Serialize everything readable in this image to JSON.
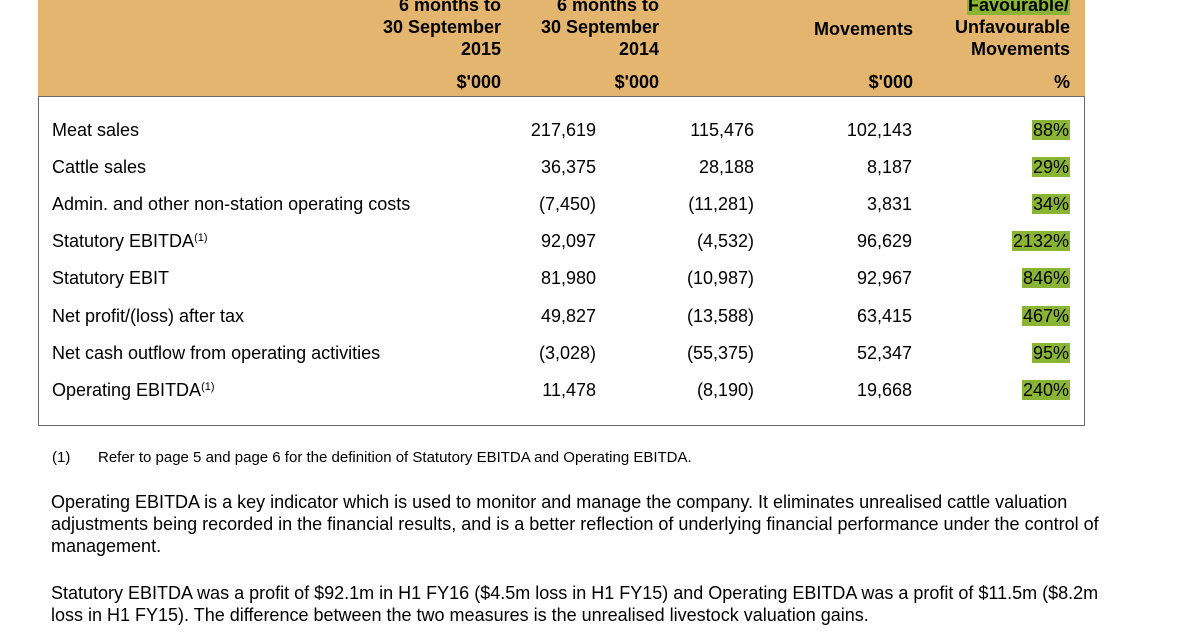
{
  "header": {
    "col1": {
      "lines": [
        "6 months to",
        "30 September",
        "2015"
      ],
      "unit": "$'000"
    },
    "col2": {
      "lines": [
        "6 months to",
        "30 September",
        "2014"
      ],
      "unit": "$'000"
    },
    "col3": {
      "lines": [
        "Movements"
      ],
      "unit": "$'000"
    },
    "col4": {
      "lines": [
        "Favourable/",
        "Unfavourable",
        "Movements"
      ],
      "unit": "%"
    }
  },
  "rows": [
    {
      "label": "Meat sales",
      "sup": "",
      "v1": "217,619",
      "v2": "115,476",
      "v3": "102,143",
      "pct": "88%"
    },
    {
      "label": "Cattle sales",
      "sup": "",
      "v1": "36,375",
      "v2": "28,188",
      "v3": "8,187",
      "pct": "29%"
    },
    {
      "label": "Admin. and other non-station operating costs",
      "sup": "",
      "v1": "(7,450)",
      "v2": "(11,281)",
      "v3": "3,831",
      "pct": "34%"
    },
    {
      "label": "Statutory EBITDA",
      "sup": "(1)",
      "v1": "92,097",
      "v2": "(4,532)",
      "v3": "96,629",
      "pct": "2132%"
    },
    {
      "label": "Statutory EBIT",
      "sup": "",
      "v1": "81,980",
      "v2": "(10,987)",
      "v3": "92,967",
      "pct": "846%"
    },
    {
      "label": "Net profit/(loss) after tax",
      "sup": "",
      "v1": "49,827",
      "v2": "(13,588)",
      "v3": "63,415",
      "pct": "467%"
    },
    {
      "label": "Net cash outflow from operating activities",
      "sup": "",
      "v1": "(3,028)",
      "v2": "(55,375)",
      "v3": "52,347",
      "pct": "95%"
    },
    {
      "label": "Operating EBITDA",
      "sup": "(1)",
      "v1": "11,478",
      "v2": "(8,190)",
      "v3": "19,668",
      "pct": "240%"
    }
  ],
  "footnote": {
    "mark": "(1)",
    "text": "Refer to page 5 and page 6 for the definition of Statutory EBITDA and Operating EBITDA."
  },
  "paragraphs": [
    "Operating EBITDA is a key indicator which is used to monitor and manage the company. It eliminates unrealised cattle valuation adjustments being recorded in the financial results, and is a better reflection of underlying financial performance under the control of management.",
    "Statutory EBITDA was a profit of $92.1m in H1 FY16 ($4.5m loss in H1 FY15) and Operating EBITDA was a profit of $11.5m ($8.2m loss in H1 FY15). The difference between the two measures is the unrealised livestock valuation gains."
  ],
  "colors": {
    "header_bg": "#e3b56f",
    "highlight": "#8ab434"
  }
}
